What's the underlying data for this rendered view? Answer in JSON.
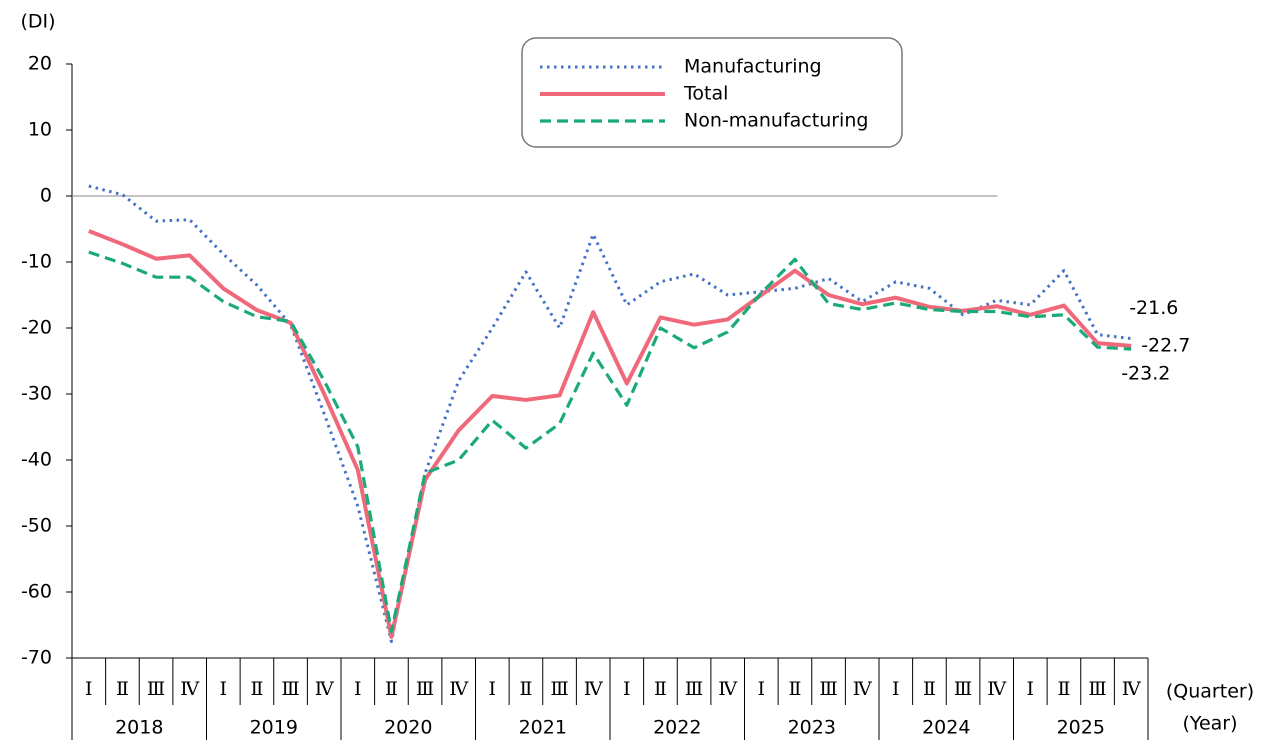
{
  "chart_data": {
    "type": "line",
    "y_label": "(DI)",
    "x_label": "(Quarter)",
    "year_label": "(Year)",
    "categories": [
      "Ⅰ",
      "Ⅱ",
      "Ⅲ",
      "Ⅳ",
      "Ⅰ",
      "Ⅱ",
      "Ⅲ",
      "Ⅳ",
      "Ⅰ",
      "Ⅱ",
      "Ⅲ",
      "Ⅳ",
      "Ⅰ",
      "Ⅱ",
      "Ⅲ",
      "Ⅳ",
      "Ⅰ",
      "Ⅱ",
      "Ⅲ",
      "Ⅳ",
      "Ⅰ",
      "Ⅱ",
      "Ⅲ",
      "Ⅳ",
      "Ⅰ",
      "Ⅱ",
      "Ⅲ",
      "Ⅳ",
      "Ⅰ",
      "Ⅱ",
      "Ⅲ",
      "Ⅳ"
    ],
    "years": [
      "2018",
      "2019",
      "2020",
      "2021",
      "2022",
      "2023",
      "2024",
      "2025"
    ],
    "ylim": [
      -70,
      20
    ],
    "yticks": [
      20,
      10,
      0,
      -10,
      -20,
      -30,
      -40,
      -50,
      -60,
      -70
    ],
    "series": [
      {
        "name": "Manufacturing",
        "color": "#4472c4",
        "style": "dotted",
        "values": [
          1.5,
          0.2,
          -3.8,
          -3.6,
          -8.8,
          -13.5,
          -19.5,
          -33,
          -47,
          -67.5,
          -42,
          -28,
          -20,
          -11.5,
          -20,
          -5.8,
          -16.5,
          -13,
          -11.8,
          -15,
          -14.5,
          -14,
          -12.5,
          -16,
          -13,
          -14,
          -18,
          -15.8,
          -16.5,
          -11.3,
          -21,
          -21.6
        ]
      },
      {
        "name": "Total",
        "color": "#f0697a",
        "style": "solid",
        "values": [
          -5.3,
          -7.3,
          -9.5,
          -9,
          -14,
          -17.3,
          -19.2,
          -30,
          -41.5,
          -66.8,
          -43,
          -35.5,
          -30.3,
          -30.9,
          -30.2,
          -17.6,
          -28.4,
          -18.4,
          -19.5,
          -18.7,
          -15,
          -11.3,
          -15,
          -16.4,
          -15.4,
          -16.8,
          -17.4,
          -16.7,
          -18,
          -16.6,
          -22.3,
          -22.7
        ]
      },
      {
        "name": "Non-manufacturing",
        "color": "#1aaa7a",
        "style": "dashed",
        "values": [
          -8.5,
          -10.2,
          -12.3,
          -12.3,
          -16,
          -18.3,
          -19,
          -28,
          -38,
          -66,
          -42,
          -40,
          -34,
          -38.2,
          -34.5,
          -23.8,
          -31.7,
          -20,
          -23,
          -20.6,
          -14.7,
          -9.6,
          -16.3,
          -17.2,
          -16.2,
          -17.2,
          -17.5,
          -17.5,
          -18.3,
          -18,
          -22.9,
          -23.2
        ]
      }
    ]
  }
}
